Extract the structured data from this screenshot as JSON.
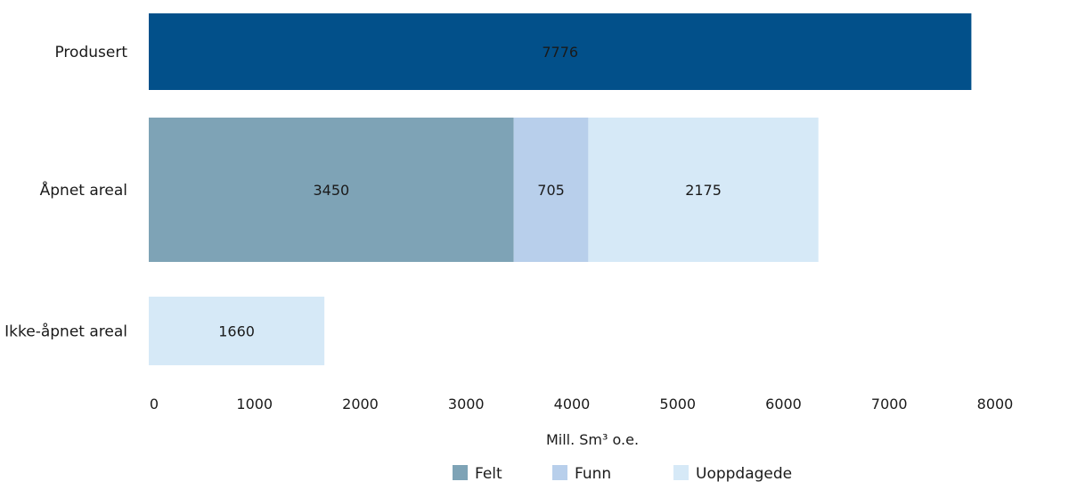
{
  "chart_data": {
    "type": "bar",
    "orientation": "horizontal",
    "stacked": true,
    "categories": [
      "Produsert",
      "Åpnet areal",
      "Ikke-åpnet areal"
    ],
    "series": [
      {
        "name": "",
        "color": "#02508a",
        "values": [
          7776,
          null,
          null
        ],
        "labels": [
          "7776",
          "",
          ""
        ]
      },
      {
        "name": "Felt",
        "color": "#7ea3b6",
        "values": [
          null,
          3450,
          null
        ],
        "labels": [
          "",
          "3450",
          ""
        ]
      },
      {
        "name": "Funn",
        "color": "#b8cfeb",
        "values": [
          null,
          705,
          null
        ],
        "labels": [
          "",
          "705",
          ""
        ]
      },
      {
        "name": "Uoppdagede",
        "color": "#d6e9f7",
        "values": [
          null,
          2175,
          1660
        ],
        "labels": [
          "",
          "2175",
          "1660"
        ]
      }
    ],
    "xlim": [
      0,
      8000
    ],
    "xticks": [
      "0",
      "1000",
      "2000",
      "3000",
      "4000",
      "5000",
      "6000",
      "7000",
      "8000"
    ],
    "xlabel": "Mill. Sm³ o.e.",
    "legend": [
      "Felt",
      "Funn",
      "Uoppdagede"
    ],
    "legend_position": "bottom",
    "grid": false
  }
}
